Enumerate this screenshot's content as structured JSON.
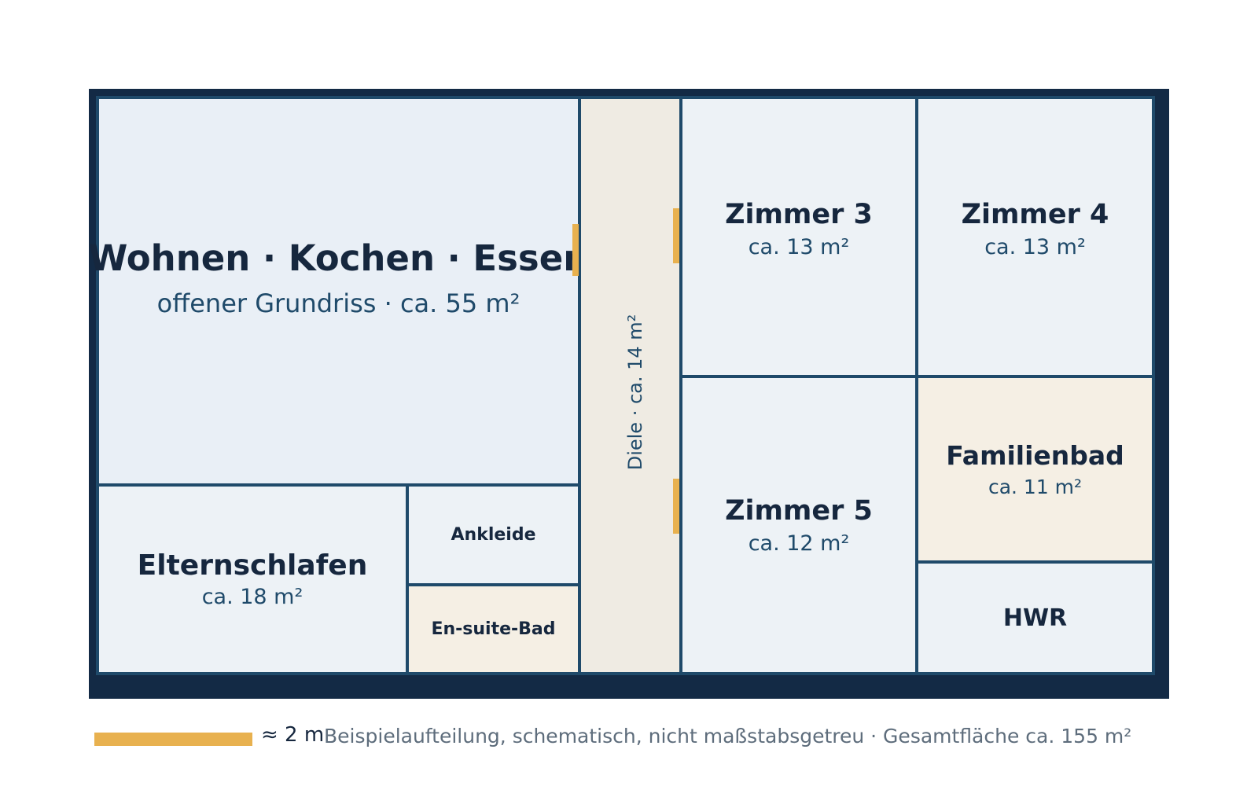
{
  "rooms": {
    "living": {
      "name": "Wohnen · Kochen · Essen",
      "area": "offener Grundriss · ca. 55 m²"
    },
    "parents": {
      "name": "Elternschlafen",
      "area": "ca. 18 m²"
    },
    "dressing": {
      "name": "Ankleide"
    },
    "ensuite": {
      "name": "En-suite-Bad"
    },
    "hall": {
      "label": "Diele · ca. 14 m²"
    },
    "room3": {
      "name": "Zimmer 3",
      "area": "ca. 13 m²"
    },
    "room4": {
      "name": "Zimmer 4",
      "area": "ca. 13 m²"
    },
    "room5": {
      "name": "Zimmer 5",
      "area": "ca. 12 m²"
    },
    "familybath": {
      "name": "Familienbad",
      "area": "ca. 11 m²"
    },
    "utility": {
      "name": "HWR"
    }
  },
  "legend": {
    "scale_label": "≈ 2 m",
    "caption": "Beispielaufteilung, schematisch, nicht maßstabsgetreu · Gesamtfläche ca. 155 m²"
  },
  "colors": {
    "outer_wall": "#132a45",
    "inner_wall": "#1f4a6a",
    "door": "#e8b14f",
    "living_fill": "#e9eff6",
    "room_fill": "#edf2f6",
    "bath_fill": "#f5efe4",
    "hall_fill": "#efebe3"
  }
}
